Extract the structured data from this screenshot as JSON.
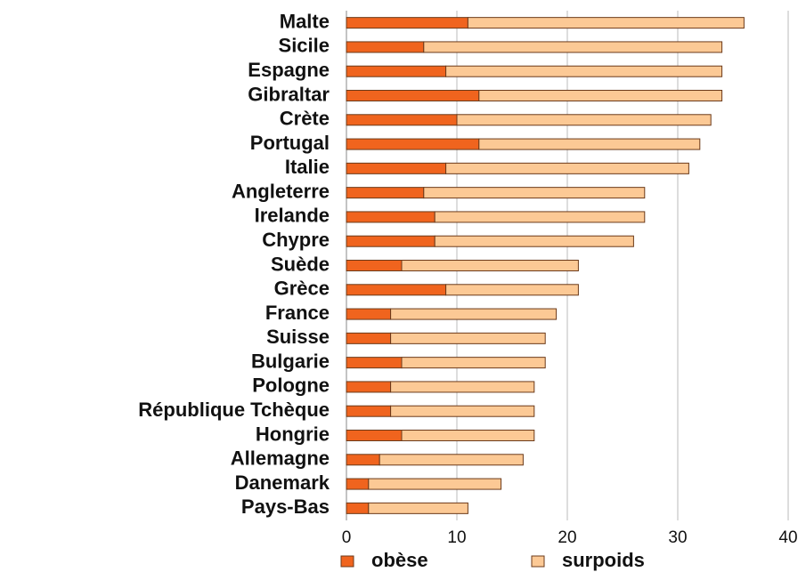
{
  "chart_data": {
    "type": "stacked_barh",
    "categories": [
      "Malte",
      "Sicile",
      "Espagne",
      "Gibraltar",
      "Crète",
      "Portugal",
      "Italie",
      "Angleterre",
      "Irelande",
      "Chypre",
      "Suède",
      "Grèce",
      "France",
      "Suisse",
      "Bulgarie",
      "Pologne",
      "République Tchèque",
      "Hongrie",
      "Allemagne",
      "Danemark",
      "Pays-Bas"
    ],
    "series": [
      {
        "name": "obèse",
        "color": "#f0641e",
        "values": [
          11,
          7,
          9,
          12,
          10,
          12,
          9,
          7,
          8,
          8,
          5,
          9,
          4,
          4,
          5,
          4,
          4,
          5,
          3,
          2,
          2
        ]
      },
      {
        "name": "surpoids",
        "color": "#fcc995",
        "values": [
          25,
          27,
          25,
          22,
          23,
          20,
          22,
          20,
          19,
          18,
          16,
          12,
          15,
          14,
          13,
          13,
          13,
          12,
          13,
          12,
          9
        ]
      }
    ],
    "xlim": [
      0,
      40
    ],
    "xticks": [
      0,
      10,
      20,
      30,
      40
    ],
    "grid": true,
    "legend": "bottom"
  }
}
